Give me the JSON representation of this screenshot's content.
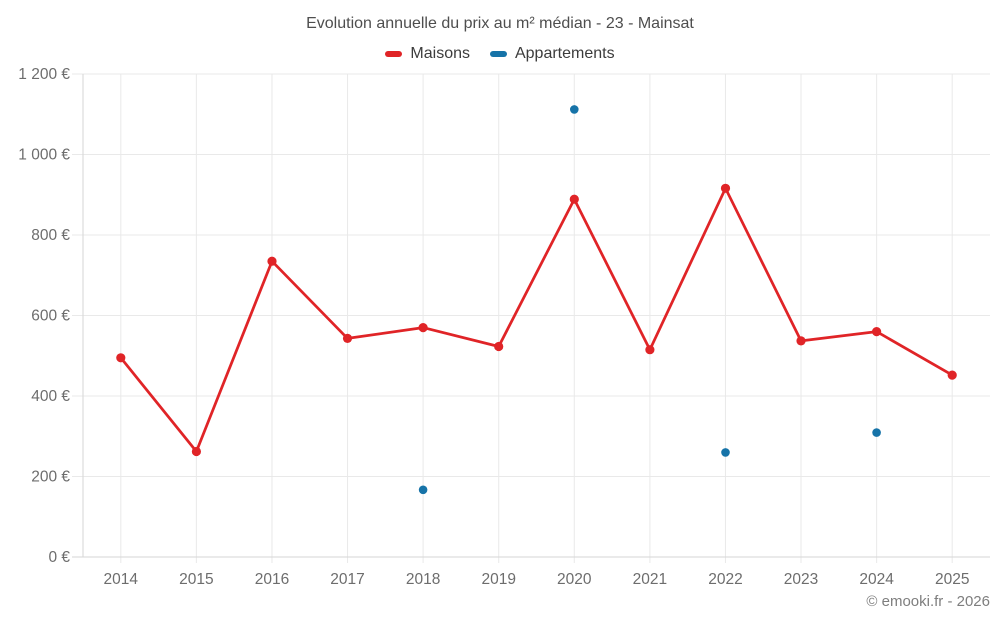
{
  "title": "Evolution annuelle du prix au m² médian - 23 - Mainsat",
  "legend": {
    "items": [
      {
        "label": "Maisons",
        "color": "#e02427"
      },
      {
        "label": "Appartements",
        "color": "#1673a8"
      }
    ]
  },
  "footer": {
    "credit": "© emooki.fr - 2026"
  },
  "chart_data": {
    "type": "line",
    "title": "Evolution annuelle du prix au m² médian - 23 - Mainsat",
    "categories": [
      "2014",
      "2015",
      "2016",
      "2017",
      "2018",
      "2019",
      "2020",
      "2021",
      "2022",
      "2023",
      "2024",
      "2025"
    ],
    "series": [
      {
        "name": "Maisons",
        "type": "line",
        "color": "#e02427",
        "values": [
          495,
          262,
          735,
          543,
          570,
          523,
          889,
          515,
          916,
          537,
          560,
          452
        ]
      },
      {
        "name": "Appartements",
        "type": "scatter",
        "color": "#1673a8",
        "values": [
          null,
          null,
          null,
          null,
          167,
          null,
          1112,
          null,
          260,
          null,
          309,
          null
        ]
      }
    ],
    "xlabel": "",
    "ylabel": "",
    "ylim": [
      0,
      1200
    ],
    "ytick_step": 200,
    "ytick_labels": [
      "0 €",
      "200 €",
      "400 €",
      "600 €",
      "800 €",
      "1 000 €",
      "1 200 €"
    ],
    "grid": true,
    "legend_position": "top",
    "currency": "€"
  },
  "colors": {
    "grid": "#e9e9e9",
    "axis": "#d6d6d6",
    "title_text": "#4e4e4e",
    "legend_text": "#3c3c3c",
    "tick_text": "#6d6d6d",
    "footer_text": "#7e7e7e",
    "background": "#ffffff"
  }
}
